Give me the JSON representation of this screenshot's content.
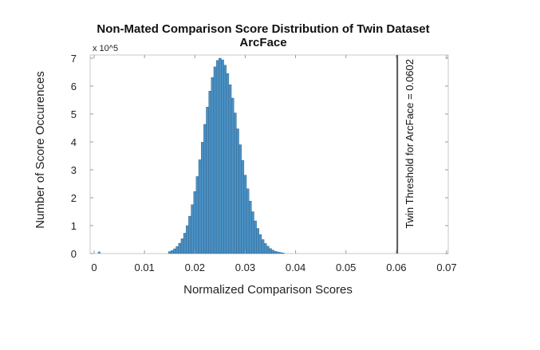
{
  "chart_data": {
    "type": "bar",
    "title": "Non-Mated Comparison Score Distribution of Twin Dataset",
    "subtitle": "ArcFace",
    "xlabel": "Normalized Comparison Scores",
    "ylabel": "Number of Score Occurences",
    "y_multiplier_label": "x 10^5",
    "xlim": [
      0,
      0.07
    ],
    "ylim": [
      0,
      7
    ],
    "x_ticks": [
      "0",
      "0.01",
      "0.02",
      "0.03",
      "0.04",
      "0.05",
      "0.06",
      "0.07"
    ],
    "y_ticks": [
      "0",
      "1",
      "2",
      "3",
      "4",
      "5",
      "6",
      "7"
    ],
    "grid": false,
    "bar_color": "#4a90c4",
    "bin_width": 0.0005,
    "bin_centers_start": 0.015,
    "values": [
      0.07,
      0.11,
      0.17,
      0.25,
      0.37,
      0.53,
      0.73,
      1.0,
      1.34,
      1.75,
      2.22,
      2.76,
      3.36,
      3.99,
      4.63,
      5.25,
      5.82,
      6.31,
      6.69,
      6.92,
      7.0,
      6.94,
      6.75,
      6.45,
      6.05,
      5.57,
      5.04,
      4.47,
      3.9,
      3.34,
      2.81,
      2.32,
      1.88,
      1.5,
      1.17,
      0.9,
      0.68,
      0.5,
      0.36,
      0.26,
      0.18,
      0.12,
      0.08,
      0.056,
      0.04,
      0.02
    ],
    "outlier_bars": [
      {
        "x": 0.001,
        "value": 0.04
      }
    ],
    "threshold": {
      "x": 0.0602,
      "label": "Twin Threshold for ArcFace = 0.0602",
      "color": "#555555"
    }
  }
}
